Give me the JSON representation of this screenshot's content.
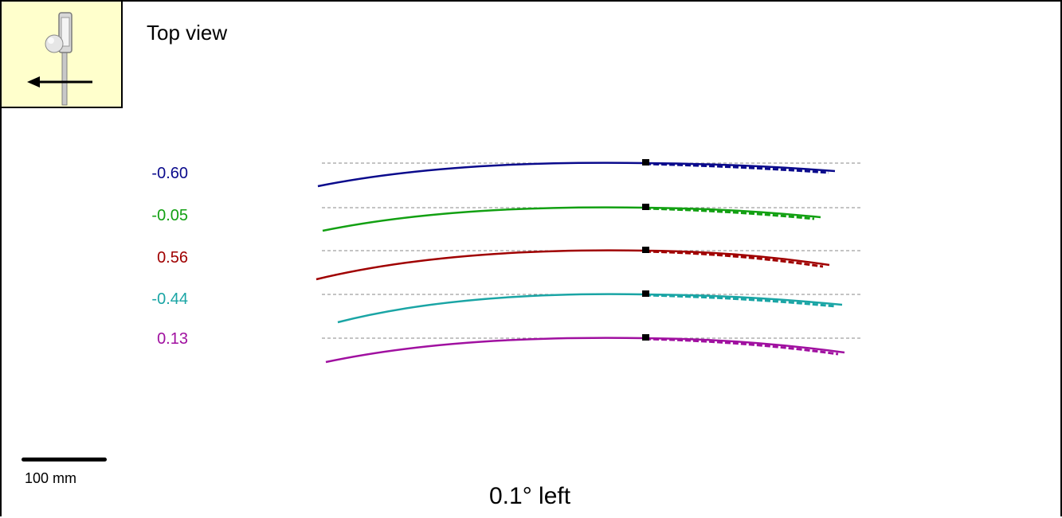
{
  "title": "Top view",
  "footer_text": "0.1° left",
  "scale_bar_label": "100 mm",
  "icons": {
    "putter": "putter-icon",
    "direction": "arrow-left-icon"
  },
  "colors": {
    "icon_background": "#ffffcc",
    "reference_line": "#888888",
    "marker": "#000000"
  },
  "chart_data": {
    "type": "line",
    "title": "Top view",
    "xlabel": "",
    "ylabel": "",
    "scale_mm_per_bar": 100,
    "series": [
      {
        "name": "-0.60",
        "color": "#0a0a8c"
      },
      {
        "name": "-0.05",
        "color": "#12a012"
      },
      {
        "name": "0.56",
        "color": "#a00000"
      },
      {
        "name": "-0.44",
        "color": "#1aa5a5"
      },
      {
        "name": "0.13",
        "color": "#a010a0"
      }
    ]
  }
}
